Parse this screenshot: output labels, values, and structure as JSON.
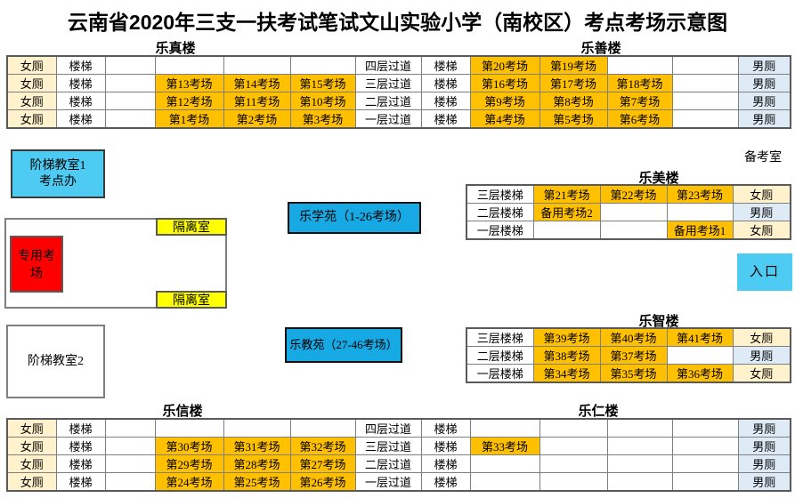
{
  "title": "云南省2020年三支一扶考试笔试文山实验小学（南校区）考点考场示意图",
  "labels": {
    "top_left_building": "乐真楼",
    "top_right_building": "乐善楼",
    "mid_right_building": "乐美楼",
    "lower_right_building": "乐智楼",
    "bottom_left_building": "乐信楼",
    "bottom_right_building": "乐仁楼",
    "prep_room": "备考室"
  },
  "boxes": {
    "stair_room_1_line1": "阶梯教室1",
    "stair_room_1_line2": "考点办",
    "stair_room_2": "阶梯教室2",
    "isolation_top": "隔离室",
    "isolation_bottom": "隔离室",
    "special_exam_room": "专用考场",
    "le_xue_yuan": "乐学苑（1-26考场）",
    "le_jiao_yuan": "乐教苑（27-46考场）",
    "entrance": "入口"
  },
  "colors": {
    "exam_room": "#FFC000",
    "female_toilet": "#FFF2CC",
    "male_toilet": "#DEEBF7",
    "isolation_room": "#FFFF00",
    "special_exam_room": "#FF0000",
    "cyan_light": "#4ECBF2",
    "cyan_deep": "#16A9E4"
  },
  "legend_cell_types": {
    "w": "plain",
    "f": "female-toilet",
    "m": "male-toilet",
    "o": "exam-room"
  },
  "tables": {
    "top": {
      "rows": [
        [
          [
            "女厕",
            "f"
          ],
          [
            "楼梯",
            "w"
          ],
          [
            "",
            "w"
          ],
          [
            "",
            "w"
          ],
          [
            "",
            "w"
          ],
          [
            "",
            "w"
          ],
          [
            "四层过道",
            "w"
          ],
          [
            "楼梯",
            "w"
          ],
          [
            "第20考场",
            "o"
          ],
          [
            "第19考场",
            "o"
          ],
          [
            "",
            "w"
          ],
          [
            "",
            "w"
          ],
          [
            "男厕",
            "m"
          ]
        ],
        [
          [
            "女厕",
            "f"
          ],
          [
            "楼梯",
            "w"
          ],
          [
            "",
            "w"
          ],
          [
            "第13考场",
            "o"
          ],
          [
            "第14考场",
            "o"
          ],
          [
            "第15考场",
            "o"
          ],
          [
            "三层过道",
            "w"
          ],
          [
            "楼梯",
            "w"
          ],
          [
            "第16考场",
            "o"
          ],
          [
            "第17考场",
            "o"
          ],
          [
            "第18考场",
            "o"
          ],
          [
            "",
            "w"
          ],
          [
            "男厕",
            "m"
          ]
        ],
        [
          [
            "女厕",
            "f"
          ],
          [
            "楼梯",
            "w"
          ],
          [
            "",
            "w"
          ],
          [
            "第12考场",
            "o"
          ],
          [
            "第11考场",
            "o"
          ],
          [
            "第10考场",
            "o"
          ],
          [
            "二层过道",
            "w"
          ],
          [
            "楼梯",
            "w"
          ],
          [
            "第9考场",
            "o"
          ],
          [
            "第8考场",
            "o"
          ],
          [
            "第7考场",
            "o"
          ],
          [
            "",
            "w"
          ],
          [
            "男厕",
            "m"
          ]
        ],
        [
          [
            "女厕",
            "f"
          ],
          [
            "楼梯",
            "w"
          ],
          [
            "",
            "w"
          ],
          [
            "第1考场",
            "o"
          ],
          [
            "第2考场",
            "o"
          ],
          [
            "第3考场",
            "o"
          ],
          [
            "一层过道",
            "w"
          ],
          [
            "楼梯",
            "w"
          ],
          [
            "第4考场",
            "o"
          ],
          [
            "第5考场",
            "o"
          ],
          [
            "第6考场",
            "o"
          ],
          [
            "",
            "w"
          ],
          [
            "男厕",
            "m"
          ]
        ]
      ]
    },
    "le_mei": {
      "rows": [
        [
          [
            "三层楼梯",
            "w"
          ],
          [
            "第21考场",
            "o"
          ],
          [
            "第22考场",
            "o"
          ],
          [
            "第23考场",
            "o"
          ],
          [
            "女厕",
            "f"
          ]
        ],
        [
          [
            "二层楼梯",
            "w"
          ],
          [
            "备用考场2",
            "o"
          ],
          [
            "",
            "w"
          ],
          [
            "",
            "w"
          ],
          [
            "男厕",
            "m"
          ]
        ],
        [
          [
            "一层楼梯",
            "w"
          ],
          [
            "",
            "w"
          ],
          [
            "",
            "w"
          ],
          [
            "备用考场1",
            "o"
          ],
          [
            "女厕",
            "f"
          ]
        ]
      ]
    },
    "le_zhi": {
      "rows": [
        [
          [
            "三层楼梯",
            "w"
          ],
          [
            "第39考场",
            "o"
          ],
          [
            "第40考场",
            "o"
          ],
          [
            "第41考场",
            "o"
          ],
          [
            "女厕",
            "f"
          ]
        ],
        [
          [
            "二层楼梯",
            "w"
          ],
          [
            "第38考场",
            "o"
          ],
          [
            "第37考场",
            "o"
          ],
          [
            "",
            "w"
          ],
          [
            "男厕",
            "m"
          ]
        ],
        [
          [
            "一层楼梯",
            "w"
          ],
          [
            "第34考场",
            "o"
          ],
          [
            "第35考场",
            "o"
          ],
          [
            "第36考场",
            "o"
          ],
          [
            "女厕",
            "f"
          ]
        ]
      ]
    },
    "bottom": {
      "rows": [
        [
          [
            "女厕",
            "f"
          ],
          [
            "楼梯",
            "w"
          ],
          [
            "",
            "w"
          ],
          [
            "",
            "w"
          ],
          [
            "",
            "w"
          ],
          [
            "",
            "w"
          ],
          [
            "四层过道",
            "w"
          ],
          [
            "楼梯",
            "w"
          ],
          [
            "",
            "w"
          ],
          [
            "",
            "w"
          ],
          [
            "",
            "w"
          ],
          [
            "",
            "w"
          ],
          [
            "男厕",
            "m"
          ]
        ],
        [
          [
            "女厕",
            "f"
          ],
          [
            "楼梯",
            "w"
          ],
          [
            "",
            "w"
          ],
          [
            "第30考场",
            "o"
          ],
          [
            "第31考场",
            "o"
          ],
          [
            "第32考场",
            "o"
          ],
          [
            "三层过道",
            "w"
          ],
          [
            "楼梯",
            "w"
          ],
          [
            "第33考场",
            "o"
          ],
          [
            "",
            "w"
          ],
          [
            "",
            "w"
          ],
          [
            "",
            "w"
          ],
          [
            "男厕",
            "m"
          ]
        ],
        [
          [
            "女厕",
            "f"
          ],
          [
            "楼梯",
            "w"
          ],
          [
            "",
            "w"
          ],
          [
            "第29考场",
            "o"
          ],
          [
            "第28考场",
            "o"
          ],
          [
            "第27考场",
            "o"
          ],
          [
            "二层过道",
            "w"
          ],
          [
            "楼梯",
            "w"
          ],
          [
            "",
            "w"
          ],
          [
            "",
            "w"
          ],
          [
            "",
            "w"
          ],
          [
            "",
            "w"
          ],
          [
            "男厕",
            "m"
          ]
        ],
        [
          [
            "女厕",
            "f"
          ],
          [
            "楼梯",
            "w"
          ],
          [
            "",
            "w"
          ],
          [
            "第24考场",
            "o"
          ],
          [
            "第25考场",
            "o"
          ],
          [
            "第26考场",
            "o"
          ],
          [
            "一层过道",
            "w"
          ],
          [
            "楼梯",
            "w"
          ],
          [
            "",
            "w"
          ],
          [
            "",
            "w"
          ],
          [
            "",
            "w"
          ],
          [
            "",
            "w"
          ],
          [
            "男厕",
            "m"
          ]
        ]
      ]
    }
  }
}
